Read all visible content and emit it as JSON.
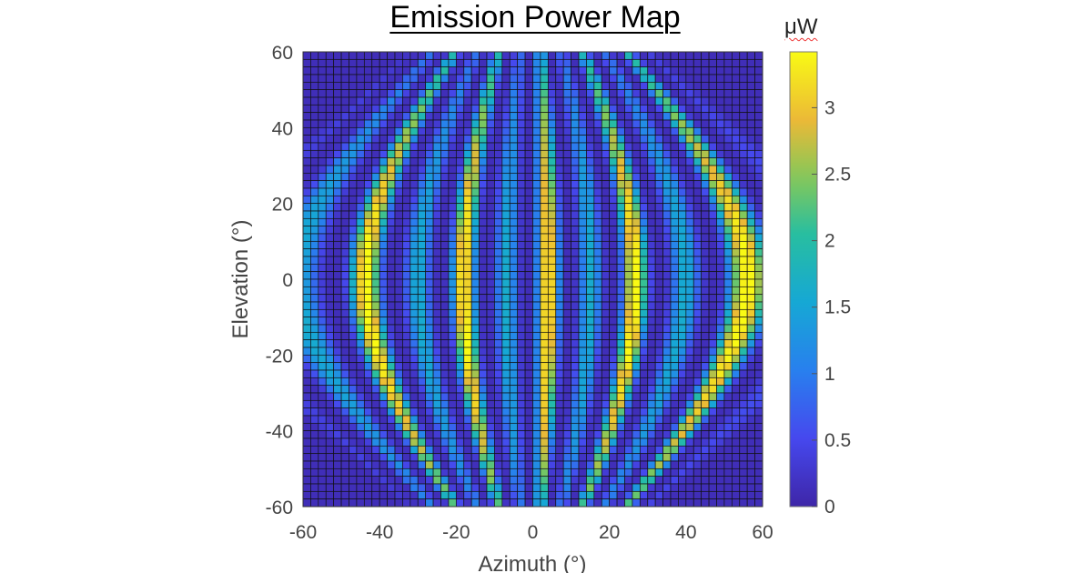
{
  "chart_data": {
    "type": "heatmap",
    "title": "Emission Power Map",
    "xlabel": "Azimuth (°)",
    "ylabel": "Elevation (°)",
    "xlim": [
      -60,
      60
    ],
    "ylim": [
      -60,
      60
    ],
    "xticks": [
      "-60",
      "-40",
      "-20",
      "0",
      "20",
      "40",
      "60"
    ],
    "yticks": [
      "60",
      "40",
      "20",
      "0",
      "-20",
      "-40",
      "-60"
    ],
    "grid_cells": [
      60,
      60
    ],
    "colorbar": {
      "label": "μW",
      "range": [
        0,
        3.42
      ],
      "ticks": [
        "3",
        "2.5",
        "2",
        "1.5",
        "1",
        "0.5",
        "0"
      ],
      "colormap": "parula"
    },
    "model": {
      "description": "fringe pattern along s = sin(az)/cos(el)",
      "s_center": 0.07,
      "s_period": 0.38,
      "strong_peak_uW": 3.4,
      "secondary_peak_uW": 1.5,
      "baseline_uW": 0.12,
      "el_envelope_center_deg": -5,
      "el_envelope_width_deg": 80
    }
  }
}
